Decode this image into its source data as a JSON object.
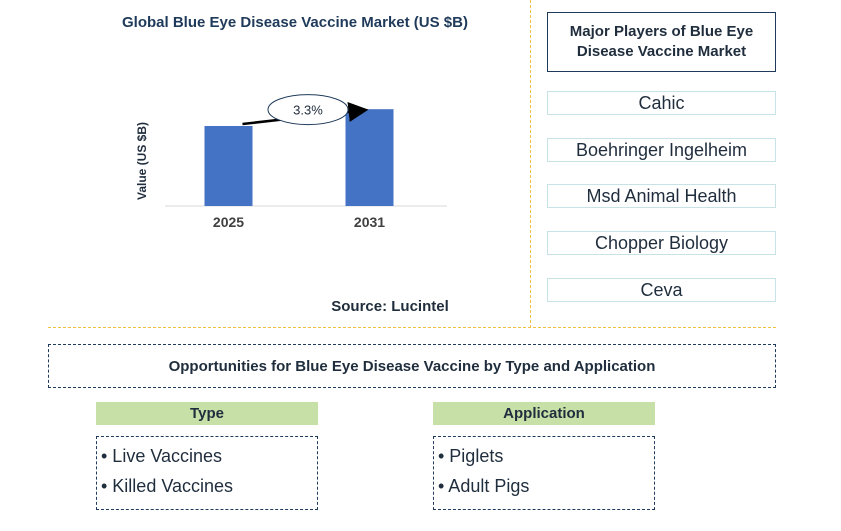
{
  "chart_data": {
    "type": "bar",
    "title": "Global Blue Eye Disease Vaccine Market (US $B)",
    "ylabel": "Value (US $B)",
    "xlabel": "",
    "categories": [
      "2025",
      "2031"
    ],
    "values": [
      1.0,
      1.21
    ],
    "ylim": [
      0,
      1.45
    ],
    "cagr_label": "3.3%",
    "bar_color": "#4472c4",
    "grid": false
  },
  "source": "Source: Lucintel",
  "players": {
    "title": "Major Players of Blue Eye Disease Vaccine Market",
    "items": [
      "Cahic",
      "Boehringer Ingelheim",
      "Msd Animal Health",
      "Chopper Biology",
      "Ceva"
    ]
  },
  "opportunities": {
    "title": "Opportunities for Blue Eye Disease Vaccine by Type and Application",
    "type": {
      "header": "Type",
      "items": [
        "• Live Vaccines",
        "• Killed Vaccines"
      ]
    },
    "application": {
      "header": "Application",
      "items": [
        "• Piglets",
        "• Adult Pigs"
      ]
    }
  },
  "colors": {
    "accent_divider": "#f0c040",
    "category_header_bg": "#c6e0a8",
    "player_border": "#c8e3e5"
  }
}
